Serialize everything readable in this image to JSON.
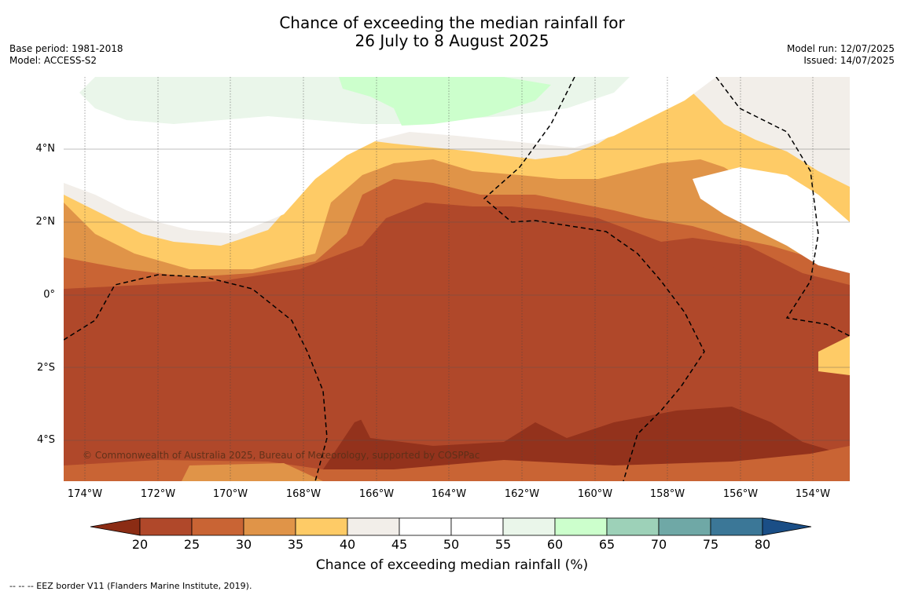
{
  "title_line1": "Chance of exceeding the median rainfall for",
  "title_line2": "26 July to 8 August 2025",
  "base_period": "Base period: 1981-2018",
  "model": "Model: ACCESS-S2",
  "model_run": "Model run: 12/07/2025",
  "issued": "Issued: 14/07/2025",
  "copyright": "© Commonwealth of Australia 2025, Bureau of Meteorology, supported by COSPPac",
  "lat_labels": [
    "4°N",
    "2°N",
    "0°",
    "2°S",
    "4°S"
  ],
  "lon_labels": [
    "174°W",
    "172°W",
    "170°W",
    "168°W",
    "166°W",
    "164°W",
    "162°W",
    "160°W",
    "158°W",
    "156°W",
    "154°W"
  ],
  "colorbar": {
    "label": "Chance of exceeding median rainfall (%)",
    "ticks": [
      "20",
      "25",
      "30",
      "35",
      "40",
      "45",
      "50",
      "55",
      "60",
      "65",
      "70",
      "75",
      "80"
    ],
    "colors": [
      "#8b2c14",
      "#b0482a",
      "#c96434",
      "#e09448",
      "#fecb66",
      "#f2eee9",
      "#ffffff",
      "#ffffff",
      "#eaf6ea",
      "#ccffcc",
      "#9dd1b8",
      "#6fa8a6",
      "#3b7797",
      "#1a4e86"
    ]
  },
  "footnote": "--  --  -- EEZ border V11 (Flanders Marine Institute, 2019)."
}
